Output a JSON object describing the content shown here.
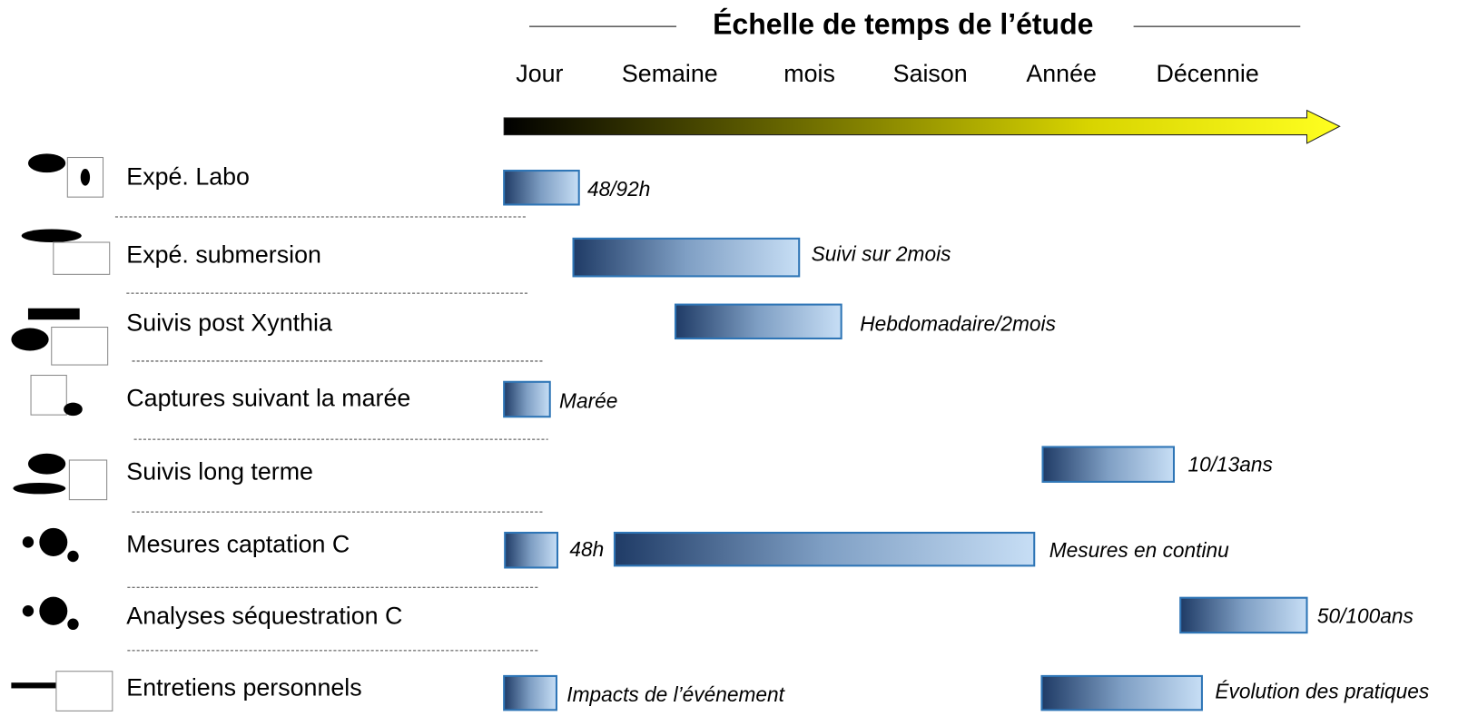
{
  "title": "Échelle de temps de l’étude",
  "scale": [
    "Jour",
    "Semaine",
    "mois",
    "Saison",
    "Année",
    "Décennie"
  ],
  "rows": [
    {
      "label": "Expé. Labo",
      "bars": [
        "48/92h"
      ]
    },
    {
      "label": "Expé. submersion",
      "bars": [
        "Suivi sur 2mois"
      ]
    },
    {
      "label": "Suivis post Xynthia",
      "bars": [
        "Hebdomadaire/2mois"
      ]
    },
    {
      "label": "Captures suivant la marée",
      "bars": [
        "Marée"
      ]
    },
    {
      "label": "Suivis long terme",
      "bars": [
        "10/13ans"
      ]
    },
    {
      "label": "Mesures captation C",
      "bars": [
        "48h",
        "Mesures en continu"
      ]
    },
    {
      "label": "Analyses séquestration C",
      "bars": [
        "50/100ans"
      ]
    },
    {
      "label": "Entretiens personnels",
      "bars": [
        "Impacts de l’événement",
        "Évolution des pratiques"
      ]
    }
  ]
}
